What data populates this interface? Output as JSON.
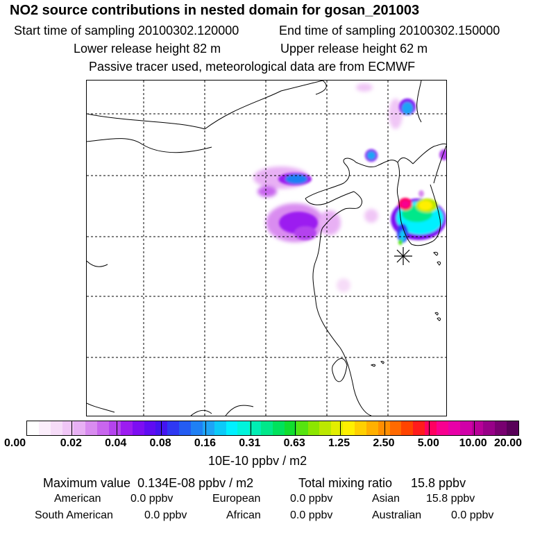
{
  "header": {
    "title": "NO2 source contributions in nested domain for gosan_201003",
    "start_label": "Start time of sampling 20100302.120000",
    "end_label": "End time of sampling 20100302.150000",
    "lower_label": "Lower release height   82 m",
    "upper_label": "Upper release height   62 m",
    "tracer_note": "Passive tracer used, meteorological data are from ECMWF"
  },
  "map": {
    "receptor_marker": "star-icon",
    "gridlines": "dashed"
  },
  "colorbar": {
    "ticks": [
      "0.00",
      "0.02",
      "0.04",
      "0.08",
      "0.16",
      "0.31",
      "0.63",
      "1.25",
      "2.50",
      "5.00",
      "10.00",
      "20.00"
    ],
    "unit": "10E-10 ppbv / m2",
    "colors": [
      "#ffffff",
      "#fbeefb",
      "#f6dcf8",
      "#f0c6f6",
      "#e8b0f4",
      "#d98cf0",
      "#c866ee",
      "#b443ee",
      "#9c1cf0",
      "#7d0ef2",
      "#5f0cf2",
      "#4414f0",
      "#2f38f2",
      "#245cf2",
      "#1f80f4",
      "#1ea4f6",
      "#0ccaf8",
      "#00f0ff",
      "#00f4dc",
      "#00eeb4",
      "#00e88a",
      "#00e25c",
      "#10de2e",
      "#56e410",
      "#8ce600",
      "#bce800",
      "#e2ee00",
      "#fff000",
      "#ffd000",
      "#ffb000",
      "#ff8e00",
      "#ff6a00",
      "#ff4400",
      "#ff1c1c",
      "#ff0060",
      "#f80090",
      "#e800a8",
      "#d000a8",
      "#b80098",
      "#980088",
      "#780070",
      "#580058"
    ]
  },
  "summary": {
    "max_label": "Maximum value",
    "max_value": "0.134E-08 ppbv / m2",
    "total_label": "Total mixing ratio",
    "total_value": "15.8 ppbv",
    "sources": [
      {
        "name": "American",
        "value": "0.0 ppbv"
      },
      {
        "name": "European",
        "value": "0.0 ppbv"
      },
      {
        "name": "Asian",
        "value": "15.8 ppbv"
      },
      {
        "name": "South American",
        "value": "0.0 ppbv"
      },
      {
        "name": "African",
        "value": "0.0 ppbv"
      },
      {
        "name": "Australian",
        "value": "0.0 ppbv"
      }
    ]
  }
}
